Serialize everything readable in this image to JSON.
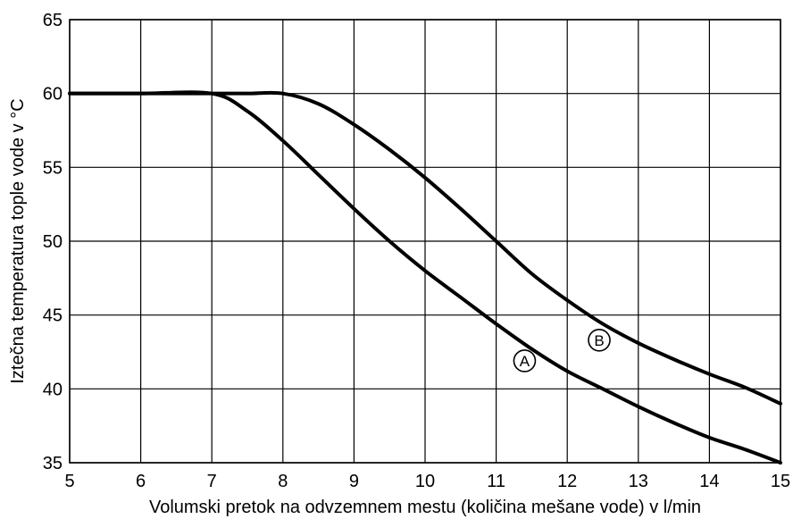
{
  "chart_data": {
    "type": "line",
    "title": "",
    "xlabel": "Volumski pretok na odvzemnem mestu (količina mešane vode) v l/min",
    "ylabel": "Iztečna temperatura tople vode v °C",
    "xlim": [
      5,
      15
    ],
    "ylim": [
      35,
      65
    ],
    "xticks": [
      "5",
      "6",
      "7",
      "8",
      "9",
      "10",
      "11",
      "12",
      "13",
      "14",
      "15"
    ],
    "yticks": [
      "35",
      "40",
      "45",
      "50",
      "55",
      "60",
      "65"
    ],
    "grid": true,
    "legend": "none",
    "series": [
      {
        "name": "A",
        "marker_at": [
          11.4,
          41.9
        ],
        "x": [
          5,
          6,
          7,
          7.5,
          8,
          8.5,
          9,
          9.5,
          10,
          10.5,
          11,
          11.5,
          12,
          12.5,
          13,
          13.5,
          14,
          14.5,
          15
        ],
        "y": [
          60,
          60,
          60,
          58.8,
          56.8,
          54.5,
          52.2,
          50,
          48,
          46.2,
          44.4,
          42.7,
          41.2,
          40,
          38.8,
          37.7,
          36.7,
          35.9,
          35
        ]
      },
      {
        "name": "B",
        "marker_at": [
          12.45,
          43.3
        ],
        "x": [
          5,
          6,
          7,
          7.5,
          8,
          8.5,
          9,
          9.5,
          10,
          10.5,
          11,
          11.5,
          12,
          12.5,
          13,
          13.5,
          14,
          14.5,
          15
        ],
        "y": [
          60,
          60,
          60,
          60,
          60,
          59.3,
          57.9,
          56.2,
          54.3,
          52.2,
          50,
          47.8,
          46,
          44.4,
          43.1,
          42,
          41,
          40.1,
          39
        ]
      }
    ]
  }
}
